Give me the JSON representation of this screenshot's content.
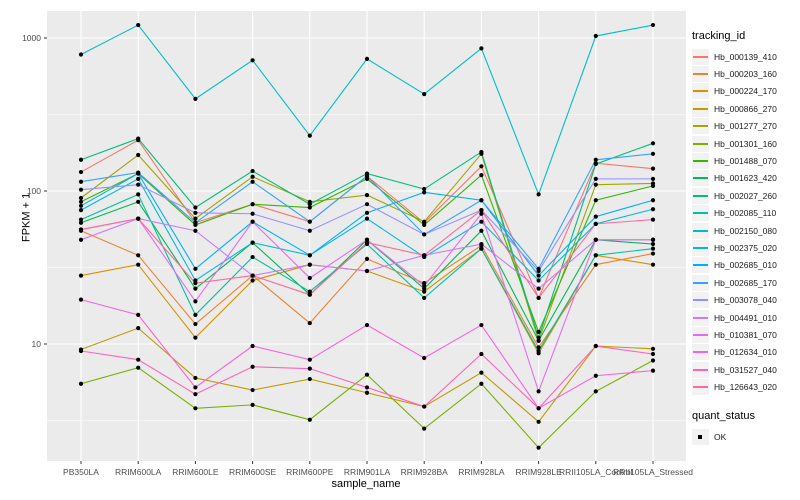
{
  "chart_data": {
    "type": "line",
    "title": "",
    "xlabel": "sample_name",
    "ylabel": "FPKM + 1",
    "y_scale": "log10",
    "y_ticks": [
      10,
      100,
      1000
    ],
    "y_tick_labels": [
      "10",
      "100",
      "1000"
    ],
    "ylim": [
      1.7,
      1500
    ],
    "grid": "on",
    "panel_bg": "#EBEBEB",
    "grid_color": "#FFFFFF",
    "point_color": "#000000",
    "categories": [
      "PB350LA",
      "RRIM600LA",
      "RRIM600LE",
      "RRIM600SE",
      "RRIM600PE",
      "RRIM901LA",
      "RRIM928BA",
      "RRIM928LA",
      "RRIM928LE",
      "RRII105LA_Control",
      "RRII105LA_Stressed"
    ],
    "legend": {
      "title": "tracking_id",
      "position": "right"
    },
    "legend2": {
      "title": "quant_status",
      "items": [
        "OK"
      ]
    },
    "series": [
      {
        "name": "Hb_000139_410",
        "color": "#F8766D",
        "values": [
          133,
          215,
          62,
          82,
          63,
          125,
          62,
          145,
          20,
          152,
          140
        ]
      },
      {
        "name": "Hb_000203_160",
        "color": "#EA8331",
        "values": [
          55,
          38,
          13.5,
          28,
          13.7,
          36,
          25,
          44,
          9.5,
          33,
          39
        ]
      },
      {
        "name": "Hb_000224_170",
        "color": "#D89000",
        "values": [
          28,
          33,
          11,
          26,
          33,
          30,
          22,
          42,
          8.7,
          38,
          33
        ]
      },
      {
        "name": "Hb_000866_270",
        "color": "#C09B00",
        "values": [
          9.2,
          12.7,
          6.0,
          5.0,
          5.9,
          4.8,
          3.9,
          6.5,
          3.1,
          9.7,
          9.3
        ]
      },
      {
        "name": "Hb_001277_270",
        "color": "#A3A500",
        "values": [
          90,
          172,
          66,
          124,
          85,
          94,
          63,
          175,
          10.5,
          110,
          112
        ]
      },
      {
        "name": "Hb_001301_160",
        "color": "#7CAE00",
        "values": [
          5.5,
          7.0,
          3.8,
          4.0,
          3.2,
          6.3,
          2.8,
          5.5,
          2.1,
          4.9,
          7.8
        ]
      },
      {
        "name": "Hb_001488_070",
        "color": "#39B600",
        "values": [
          85,
          130,
          60,
          82,
          78,
          120,
          60,
          127,
          12,
          87,
          108
        ]
      },
      {
        "name": "Hb_001623_420",
        "color": "#00BB4E",
        "values": [
          62,
          85,
          23,
          46,
          21,
          48,
          23,
          55,
          10.5,
          48,
          45
        ]
      },
      {
        "name": "Hb_002027_260",
        "color": "#00BF7D",
        "values": [
          160,
          220,
          78,
          135,
          82,
          130,
          103,
          180,
          11,
          150,
          205
        ]
      },
      {
        "name": "Hb_002085_110",
        "color": "#00C1A3",
        "values": [
          65,
          95,
          15.5,
          37,
          22,
          45,
          20,
          42,
          9.0,
          38,
          42
        ]
      },
      {
        "name": "Hb_002150_080",
        "color": "#00BFC4",
        "values": [
          780,
          1215,
          400,
          715,
          230,
          730,
          430,
          855,
          95,
          1030,
          1215
        ]
      },
      {
        "name": "Hb_002375_020",
        "color": "#00BAE0",
        "values": [
          75,
          120,
          26,
          46,
          38,
          66,
          37,
          63,
          26,
          61,
          76
        ]
      },
      {
        "name": "Hb_002685_010",
        "color": "#00B0F6",
        "values": [
          80,
          130,
          31,
          63,
          38,
          72,
          98,
          87,
          28,
          68,
          87
        ]
      },
      {
        "name": "Hb_002685_170",
        "color": "#35A2FF",
        "values": [
          115,
          132,
          62,
          115,
          63,
          125,
          52,
          87,
          31,
          160,
          175
        ]
      },
      {
        "name": "Hb_003078_040",
        "color": "#9590FF",
        "values": [
          102,
          110,
          72,
          71,
          55,
          82,
          52,
          75,
          30,
          120,
          120
        ]
      },
      {
        "name": "Hb_004491_010",
        "color": "#C77CFF",
        "values": [
          48,
          66,
          55,
          28,
          33,
          30,
          38,
          45,
          23,
          48,
          48
        ]
      },
      {
        "name": "Hb_010381_070",
        "color": "#E76BF3",
        "values": [
          56,
          66,
          19,
          63,
          27,
          48,
          24,
          71,
          4.9,
          48,
          48
        ]
      },
      {
        "name": "Hb_012634_010",
        "color": "#FA62DB",
        "values": [
          19.5,
          15.5,
          5.2,
          9.7,
          7.9,
          13.3,
          8.1,
          13.3,
          3.8,
          6.2,
          6.7
        ]
      },
      {
        "name": "Hb_031527_040",
        "color": "#FF62BC",
        "values": [
          9.0,
          7.9,
          4.7,
          7.1,
          6.9,
          5.2,
          3.9,
          8.6,
          3.8,
          9.7,
          8.6
        ]
      },
      {
        "name": "Hb_126643_020",
        "color": "#FF6A98",
        "values": [
          56,
          66,
          25,
          28,
          21,
          46,
          38,
          75,
          20,
          61,
          65
        ]
      }
    ]
  }
}
